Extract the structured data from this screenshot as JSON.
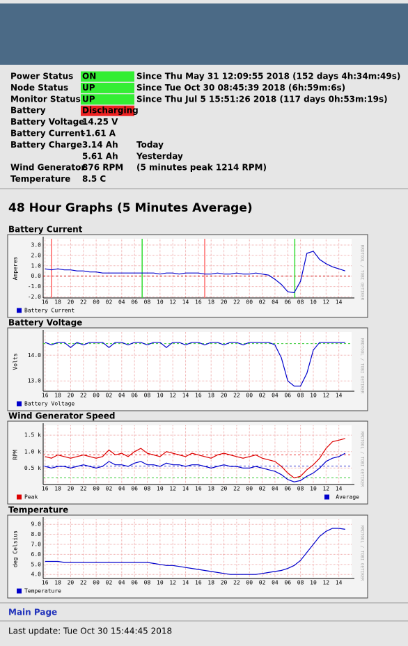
{
  "status": {
    "rows": [
      {
        "label": "Power Status",
        "value": "ON",
        "highlight": "#33ee33",
        "note": "Since Thu May 31 12:09:55 2018 (152 days 4h:34m:49s)"
      },
      {
        "label": "Node Status",
        "value": "UP",
        "highlight": "#33ee33",
        "note": "Since Tue Oct 30 08:45:39 2018 (6h:59m:6s)"
      },
      {
        "label": "Monitor Status",
        "value": "UP",
        "highlight": "#33ee33",
        "note": "Since Thu Jul 5 15:51:26 2018 (117 days 0h:53m:19s)"
      },
      {
        "label": "Battery",
        "value": "Discharging",
        "highlight": "#ee2222"
      },
      {
        "label": "Battery Voltage",
        "value": "14.25 V"
      },
      {
        "label": "Battery Current",
        "value": "-1.61 A"
      },
      {
        "label": "Battery Charge",
        "value": "3.14 Ah",
        "note": "Today"
      },
      {
        "value": "5.61 Ah",
        "note": "Yesterday"
      },
      {
        "label": "Wind Generator",
        "value": "876 RPM",
        "note": "(5 minutes peak 1214 RPM)"
      },
      {
        "label": "Temperature",
        "value": "8.5 C"
      }
    ]
  },
  "section_title": "48 Hour Graphs (5 Minutes Average)",
  "chart_data": [
    {
      "type": "line",
      "title": "Battery Current",
      "y_label": "Amperes",
      "watermark": "RRDTOOL / TOBI OETIKER",
      "grid": true,
      "x": [
        0,
        1,
        2,
        3,
        4,
        5,
        6,
        7,
        8,
        9,
        10,
        11,
        12,
        13,
        14,
        15,
        16,
        17,
        18,
        19,
        20,
        21,
        22,
        23,
        24,
        25,
        26,
        27,
        28,
        29,
        30,
        31,
        32,
        33,
        34,
        35,
        36,
        37,
        38,
        39,
        40,
        41,
        42,
        43,
        44,
        45,
        46,
        47
      ],
      "xlim": [
        -0.3,
        48
      ],
      "xticks": [
        {
          "value": 0,
          "label": "16"
        },
        {
          "value": 2,
          "label": "18"
        },
        {
          "value": 4,
          "label": "20"
        },
        {
          "value": 6,
          "label": "22"
        },
        {
          "value": 8,
          "label": "00"
        },
        {
          "value": 10,
          "label": "02"
        },
        {
          "value": 12,
          "label": "04"
        },
        {
          "value": 14,
          "label": "06"
        },
        {
          "value": 16,
          "label": "08"
        },
        {
          "value": 18,
          "label": "10"
        },
        {
          "value": 20,
          "label": "12"
        },
        {
          "value": 22,
          "label": "14"
        },
        {
          "value": 24,
          "label": "16"
        },
        {
          "value": 26,
          "label": "18"
        },
        {
          "value": 28,
          "label": "20"
        },
        {
          "value": 30,
          "label": "22"
        },
        {
          "value": 32,
          "label": "00"
        },
        {
          "value": 34,
          "label": "02"
        },
        {
          "value": 36,
          "label": "04"
        },
        {
          "value": 38,
          "label": "06"
        },
        {
          "value": 40,
          "label": "08"
        },
        {
          "value": 42,
          "label": "10"
        },
        {
          "value": 44,
          "label": "12"
        },
        {
          "value": 46,
          "label": "14"
        }
      ],
      "ylim": [
        -2.1,
        3.6
      ],
      "yticks": [
        {
          "value": -2,
          "label": "-2.0"
        },
        {
          "value": -1,
          "label": "-1.0"
        },
        {
          "value": 0,
          "label": "0.0"
        },
        {
          "value": 1,
          "label": "1.0"
        },
        {
          "value": 2,
          "label": "2.0"
        },
        {
          "value": 3,
          "label": "3.0"
        }
      ],
      "hrules": [
        {
          "y": 0,
          "color": "#cc0000"
        }
      ],
      "vrules": [
        {
          "x": 1,
          "color": "#ff6666"
        },
        {
          "x": 15.2,
          "color": "#33dd33"
        },
        {
          "x": 25,
          "color": "#ff6666"
        },
        {
          "x": 39.1,
          "color": "#33dd33"
        }
      ],
      "series": [
        {
          "name": "Battery Current",
          "color": "#0000cc",
          "values": [
            0.7,
            0.6,
            0.7,
            0.6,
            0.6,
            0.5,
            0.5,
            0.4,
            0.4,
            0.3,
            0.3,
            0.3,
            0.3,
            0.3,
            0.3,
            0.3,
            0.3,
            0.3,
            0.2,
            0.3,
            0.3,
            0.2,
            0.3,
            0.3,
            0.3,
            0.2,
            0.2,
            0.3,
            0.2,
            0.2,
            0.3,
            0.2,
            0.2,
            0.3,
            0.2,
            0.1,
            -0.3,
            -0.8,
            -1.5,
            -1.6,
            -0.5,
            2.2,
            2.4,
            1.6,
            1.2,
            0.9,
            0.7,
            0.5
          ]
        }
      ]
    },
    {
      "type": "line",
      "title": "Battery Voltage",
      "y_label": "Volts",
      "watermark": "RRDTOOL / TOBI OETIKER",
      "grid": true,
      "x": [
        0,
        1,
        2,
        3,
        4,
        5,
        6,
        7,
        8,
        9,
        10,
        11,
        12,
        13,
        14,
        15,
        16,
        17,
        18,
        19,
        20,
        21,
        22,
        23,
        24,
        25,
        26,
        27,
        28,
        29,
        30,
        31,
        32,
        33,
        34,
        35,
        36,
        37,
        38,
        39,
        40,
        41,
        42,
        43,
        44,
        45,
        46,
        47
      ],
      "xlim": [
        -0.3,
        48
      ],
      "xticks": [
        {
          "value": 0,
          "label": "16"
        },
        {
          "value": 2,
          "label": "18"
        },
        {
          "value": 4,
          "label": "20"
        },
        {
          "value": 6,
          "label": "22"
        },
        {
          "value": 8,
          "label": "00"
        },
        {
          "value": 10,
          "label": "02"
        },
        {
          "value": 12,
          "label": "04"
        },
        {
          "value": 14,
          "label": "06"
        },
        {
          "value": 16,
          "label": "08"
        },
        {
          "value": 18,
          "label": "10"
        },
        {
          "value": 20,
          "label": "12"
        },
        {
          "value": 22,
          "label": "14"
        },
        {
          "value": 24,
          "label": "16"
        },
        {
          "value": 26,
          "label": "18"
        },
        {
          "value": 28,
          "label": "20"
        },
        {
          "value": 30,
          "label": "22"
        },
        {
          "value": 32,
          "label": "00"
        },
        {
          "value": 34,
          "label": "02"
        },
        {
          "value": 36,
          "label": "04"
        },
        {
          "value": 38,
          "label": "06"
        },
        {
          "value": 40,
          "label": "08"
        },
        {
          "value": 42,
          "label": "10"
        },
        {
          "value": 44,
          "label": "12"
        },
        {
          "value": 46,
          "label": "14"
        }
      ],
      "ylim": [
        12.6,
        14.9
      ],
      "yticks": [
        {
          "value": 13,
          "label": "13.0"
        },
        {
          "value": 14,
          "label": "14.0"
        }
      ],
      "hrules": [
        {
          "y": 14.45,
          "color": "#33cc33"
        }
      ],
      "series": [
        {
          "name": "Battery Voltage",
          "color": "#0000cc",
          "values": [
            14.5,
            14.4,
            14.5,
            14.5,
            14.3,
            14.5,
            14.4,
            14.5,
            14.5,
            14.5,
            14.3,
            14.5,
            14.5,
            14.4,
            14.5,
            14.5,
            14.4,
            14.5,
            14.5,
            14.3,
            14.5,
            14.5,
            14.4,
            14.5,
            14.5,
            14.4,
            14.5,
            14.5,
            14.4,
            14.5,
            14.5,
            14.4,
            14.5,
            14.5,
            14.5,
            14.5,
            14.4,
            13.9,
            13.0,
            12.8,
            12.8,
            13.3,
            14.2,
            14.5,
            14.5,
            14.5,
            14.5,
            14.5
          ]
        }
      ]
    },
    {
      "type": "line",
      "title": "Wind Generator Speed",
      "y_label": "RPM",
      "watermark": "RRDTOOL / TOBI OETIKER",
      "grid": true,
      "x": [
        0,
        1,
        2,
        3,
        4,
        5,
        6,
        7,
        8,
        9,
        10,
        11,
        12,
        13,
        14,
        15,
        16,
        17,
        18,
        19,
        20,
        21,
        22,
        23,
        24,
        25,
        26,
        27,
        28,
        29,
        30,
        31,
        32,
        33,
        34,
        35,
        36,
        37,
        38,
        39,
        40,
        41,
        42,
        43,
        44,
        45,
        46,
        47
      ],
      "xlim": [
        -0.3,
        48
      ],
      "xticks": [
        {
          "value": 0,
          "label": "16"
        },
        {
          "value": 2,
          "label": "18"
        },
        {
          "value": 4,
          "label": "20"
        },
        {
          "value": 6,
          "label": "22"
        },
        {
          "value": 8,
          "label": "00"
        },
        {
          "value": 10,
          "label": "02"
        },
        {
          "value": 12,
          "label": "04"
        },
        {
          "value": 14,
          "label": "06"
        },
        {
          "value": 16,
          "label": "08"
        },
        {
          "value": 18,
          "label": "10"
        },
        {
          "value": 20,
          "label": "12"
        },
        {
          "value": 22,
          "label": "14"
        },
        {
          "value": 24,
          "label": "16"
        },
        {
          "value": 26,
          "label": "18"
        },
        {
          "value": 28,
          "label": "20"
        },
        {
          "value": 30,
          "label": "22"
        },
        {
          "value": 32,
          "label": "00"
        },
        {
          "value": 34,
          "label": "02"
        },
        {
          "value": 36,
          "label": "04"
        },
        {
          "value": 38,
          "label": "06"
        },
        {
          "value": 40,
          "label": "08"
        },
        {
          "value": 42,
          "label": "10"
        },
        {
          "value": 44,
          "label": "12"
        },
        {
          "value": 46,
          "label": "14"
        }
      ],
      "ylim": [
        0,
        1800
      ],
      "yticks": [
        {
          "value": 500,
          "label": "0.5 k"
        },
        {
          "value": 1000,
          "label": "1.0 k"
        },
        {
          "value": 1500,
          "label": "1.5 k"
        }
      ],
      "hrules": [
        {
          "y": 900,
          "color": "#ee3333"
        },
        {
          "y": 560,
          "color": "#3333cc"
        },
        {
          "y": 200,
          "color": "#33cc33"
        }
      ],
      "series": [
        {
          "name": "Peak",
          "color": "#dd0000",
          "values": [
            850,
            800,
            900,
            850,
            800,
            850,
            900,
            850,
            800,
            850,
            1050,
            900,
            950,
            850,
            1000,
            1100,
            950,
            900,
            850,
            1000,
            950,
            900,
            850,
            950,
            900,
            850,
            800,
            900,
            950,
            900,
            850,
            800,
            850,
            900,
            800,
            750,
            700,
            550,
            350,
            200,
            250,
            450,
            600,
            800,
            1100,
            1300,
            1350,
            1400
          ]
        },
        {
          "name": "Average",
          "color": "#0000cc",
          "values": [
            550,
            500,
            550,
            550,
            500,
            550,
            600,
            550,
            500,
            550,
            700,
            600,
            600,
            550,
            650,
            700,
            600,
            600,
            550,
            650,
            600,
            600,
            550,
            600,
            600,
            550,
            500,
            550,
            600,
            550,
            550,
            500,
            500,
            550,
            500,
            450,
            400,
            300,
            150,
            80,
            120,
            250,
            350,
            500,
            700,
            800,
            850,
            950
          ]
        }
      ]
    },
    {
      "type": "line",
      "title": "Temperature",
      "y_label": "deg Celsius",
      "watermark": "RRDTOOL / TOBI OETIKER",
      "grid": true,
      "x": [
        0,
        1,
        2,
        3,
        4,
        5,
        6,
        7,
        8,
        9,
        10,
        11,
        12,
        13,
        14,
        15,
        16,
        17,
        18,
        19,
        20,
        21,
        22,
        23,
        24,
        25,
        26,
        27,
        28,
        29,
        30,
        31,
        32,
        33,
        34,
        35,
        36,
        37,
        38,
        39,
        40,
        41,
        42,
        43,
        44,
        45,
        46,
        47
      ],
      "xlim": [
        -0.3,
        48
      ],
      "xticks": [
        {
          "value": 0,
          "label": "16"
        },
        {
          "value": 2,
          "label": "18"
        },
        {
          "value": 4,
          "label": "20"
        },
        {
          "value": 6,
          "label": "22"
        },
        {
          "value": 8,
          "label": "00"
        },
        {
          "value": 10,
          "label": "02"
        },
        {
          "value": 12,
          "label": "04"
        },
        {
          "value": 14,
          "label": "06"
        },
        {
          "value": 16,
          "label": "08"
        },
        {
          "value": 18,
          "label": "10"
        },
        {
          "value": 20,
          "label": "12"
        },
        {
          "value": 22,
          "label": "14"
        },
        {
          "value": 24,
          "label": "16"
        },
        {
          "value": 26,
          "label": "18"
        },
        {
          "value": 28,
          "label": "20"
        },
        {
          "value": 30,
          "label": "22"
        },
        {
          "value": 32,
          "label": "00"
        },
        {
          "value": 34,
          "label": "02"
        },
        {
          "value": 36,
          "label": "04"
        },
        {
          "value": 38,
          "label": "06"
        },
        {
          "value": 40,
          "label": "08"
        },
        {
          "value": 42,
          "label": "10"
        },
        {
          "value": 44,
          "label": "12"
        },
        {
          "value": 46,
          "label": "14"
        }
      ],
      "ylim": [
        3.6,
        9.5
      ],
      "yticks": [
        {
          "value": 4,
          "label": "4.0"
        },
        {
          "value": 5,
          "label": "5.0"
        },
        {
          "value": 6,
          "label": "6.0"
        },
        {
          "value": 7,
          "label": "7.0"
        },
        {
          "value": 8,
          "label": "8.0"
        },
        {
          "value": 9,
          "label": "9.0"
        }
      ],
      "series": [
        {
          "name": "Temperature",
          "color": "#0000cc",
          "values": [
            5.3,
            5.3,
            5.3,
            5.2,
            5.2,
            5.2,
            5.2,
            5.2,
            5.2,
            5.2,
            5.2,
            5.2,
            5.2,
            5.2,
            5.2,
            5.2,
            5.2,
            5.1,
            5.0,
            4.9,
            4.9,
            4.8,
            4.7,
            4.6,
            4.5,
            4.4,
            4.3,
            4.2,
            4.1,
            4.0,
            4.0,
            4.0,
            4.0,
            4.0,
            4.1,
            4.2,
            4.3,
            4.4,
            4.6,
            4.9,
            5.4,
            6.2,
            7.0,
            7.8,
            8.3,
            8.6,
            8.6,
            8.5
          ]
        }
      ]
    }
  ],
  "footer": {
    "link": "Main Page",
    "last_update": "Last update: Tue Oct 30 15:44:45 2018"
  }
}
